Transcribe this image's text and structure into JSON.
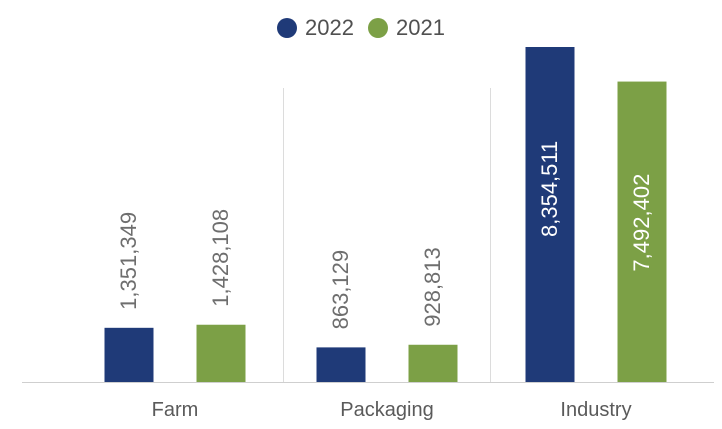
{
  "chart_data": {
    "type": "bar",
    "title": "",
    "xlabel": "",
    "ylabel": "",
    "categories": [
      "Farm",
      "Packaging",
      "Industry"
    ],
    "series": [
      {
        "name": "2022",
        "values": [
          1351349,
          863129,
          8354511
        ],
        "labels": [
          "1,351,349",
          "863,129",
          "8,354,511"
        ],
        "color": "#1F3A78"
      },
      {
        "name": "2021",
        "values": [
          1428108,
          928813,
          7492402
        ],
        "labels": [
          "1,428,108",
          "928,813",
          "7,492,402"
        ],
        "color": "#7CA046"
      }
    ],
    "ylim": [
      0,
      9000000
    ],
    "legend_position": "top-center",
    "grid": false,
    "value_labels": "rotated-vertical"
  }
}
